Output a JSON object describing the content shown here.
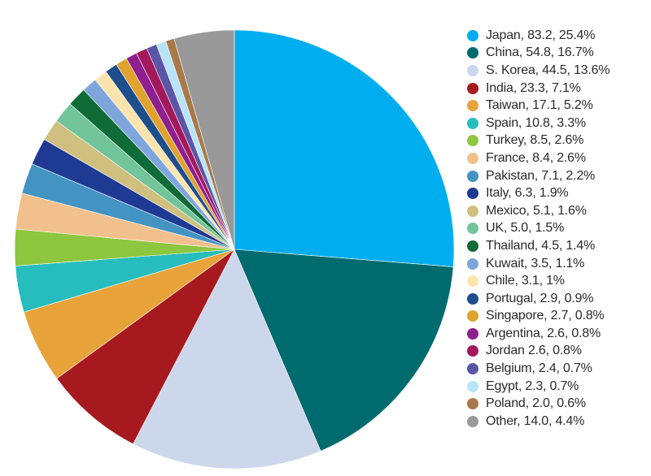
{
  "chart_data": {
    "type": "pie",
    "title": "",
    "legend_position": "right",
    "slices": [
      {
        "label": "Japan, 83.2, 25.4%",
        "value": 83.2,
        "percent": 25.4,
        "color": "#00aeef"
      },
      {
        "label": "China, 54.8, 16.7%",
        "value": 54.8,
        "percent": 16.7,
        "color": "#006b6e"
      },
      {
        "label": "S. Korea, 44.5, 13.6%",
        "value": 44.5,
        "percent": 13.6,
        "color": "#ccd7ec"
      },
      {
        "label": "India, 23.3, 7.1%",
        "value": 23.3,
        "percent": 7.1,
        "color": "#a6191f"
      },
      {
        "label": "Taiwan, 17.1, 5.2%",
        "value": 17.1,
        "percent": 5.2,
        "color": "#e8a33a"
      },
      {
        "label": "Spain, 10.8, 3.3%",
        "value": 10.8,
        "percent": 3.3,
        "color": "#27bdbe"
      },
      {
        "label": "Turkey, 8.5, 2.6%",
        "value": 8.5,
        "percent": 2.6,
        "color": "#8dc63f"
      },
      {
        "label": "France, 8.4, 2.6%",
        "value": 8.4,
        "percent": 2.6,
        "color": "#f2c08d"
      },
      {
        "label": "Pakistan, 7.1, 2.2%",
        "value": 7.1,
        "percent": 2.2,
        "color": "#4393c3"
      },
      {
        "label": "Italy, 6.3, 1.9%",
        "value": 6.3,
        "percent": 1.9,
        "color": "#1f3a93"
      },
      {
        "label": "Mexico, 5.1, 1.6%",
        "value": 5.1,
        "percent": 1.6,
        "color": "#cfc07f"
      },
      {
        "label": "UK, 5.0, 1.5%",
        "value": 5.0,
        "percent": 1.5,
        "color": "#72c49b"
      },
      {
        "label": "Thailand, 4.5, 1.4%",
        "value": 4.5,
        "percent": 1.4,
        "color": "#0f6b37"
      },
      {
        "label": "Kuwait, 3.5, 1.1%",
        "value": 3.5,
        "percent": 1.1,
        "color": "#7fa6dc"
      },
      {
        "label": "Chile, 3.1, 1%",
        "value": 3.1,
        "percent": 1.0,
        "color": "#fde3ad"
      },
      {
        "label": "Portugal, 2.9, 0.9%",
        "value": 2.9,
        "percent": 0.9,
        "color": "#1f4e8c"
      },
      {
        "label": "Singapore, 2.7, 0.8%",
        "value": 2.7,
        "percent": 0.8,
        "color": "#e0a32e"
      },
      {
        "label": "Argentina, 2.6, 0.8%",
        "value": 2.6,
        "percent": 0.8,
        "color": "#8e1f8f"
      },
      {
        "label": "Jordan 2.6, 0.8%",
        "value": 2.6,
        "percent": 0.8,
        "color": "#a3195b"
      },
      {
        "label": "Belgium, 2.4, 0.7%",
        "value": 2.4,
        "percent": 0.7,
        "color": "#5b55a7"
      },
      {
        "label": "Egypt, 2.3, 0.7%",
        "value": 2.3,
        "percent": 0.7,
        "color": "#b7e4f8"
      },
      {
        "label": "Poland, 2.0, 0.6%",
        "value": 2.0,
        "percent": 0.6,
        "color": "#a87a4a"
      },
      {
        "label": "Other, 14.0, 4.4%",
        "value": 14.0,
        "percent": 4.4,
        "color": "#999999"
      }
    ]
  }
}
